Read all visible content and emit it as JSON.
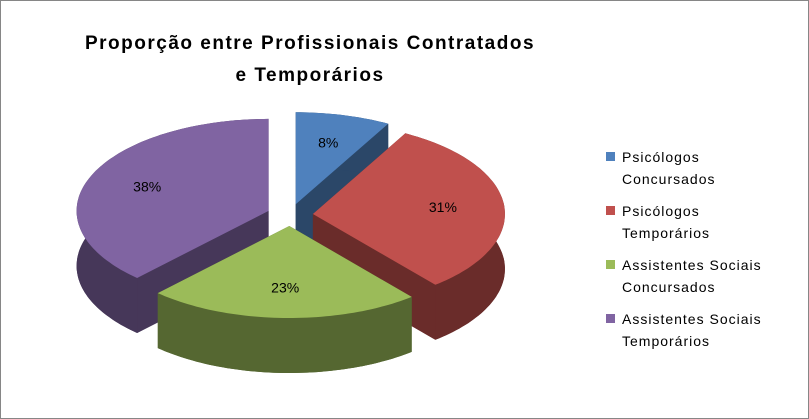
{
  "chart_data": {
    "type": "pie",
    "title": "Proporção entre Profissionais Contratados e Temporários",
    "categories": [
      "Psicólogos Concursados",
      "Psicólogos Temporários",
      "Assistentes Sociais Concursados",
      "Assistentes Sociais Temporários"
    ],
    "values": [
      8,
      31,
      23,
      38
    ],
    "value_labels": [
      "8%",
      "31%",
      "23%",
      "38%"
    ],
    "colors": [
      "#4f81bd",
      "#c0504d",
      "#9bbb59",
      "#8064a2"
    ],
    "legend": "right"
  }
}
